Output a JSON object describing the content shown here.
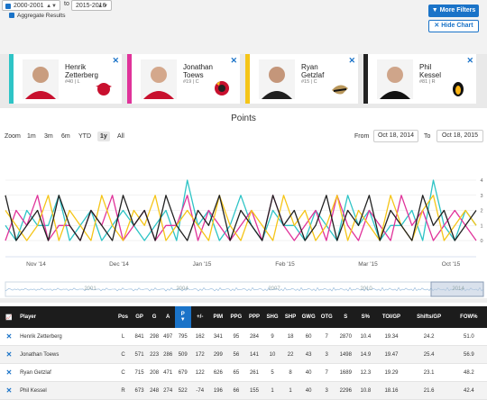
{
  "filters": {
    "season_from": "2000-2001",
    "to_label": "to",
    "season_to": "2015-2016",
    "aggregate_label": "Aggregate Results",
    "more_filters_label": "More Filters",
    "hide_chart_label": "Hide Chart"
  },
  "icons": {
    "filter": "filter-icon",
    "close": "close-icon",
    "chart": "chart-icon",
    "sort": "sort-down-icon"
  },
  "colors": {
    "teal": "#2ec4c6",
    "magenta": "#e0339a",
    "yellow": "#f5c518",
    "black": "#222222",
    "accent": "#1a73c8"
  },
  "players": [
    {
      "first": "Henrik",
      "last": "Zetterberg",
      "meta": "#40 | L",
      "color": "#2ec4c6",
      "team_logo": "red-wings-logo"
    },
    {
      "first": "Jonathan",
      "last": "Toews",
      "meta": "#19 | C",
      "color": "#e0339a",
      "team_logo": "blackhawks-logo"
    },
    {
      "first": "Ryan",
      "last": "Getzlaf",
      "meta": "#15 | C",
      "color": "#f5c518",
      "team_logo": "ducks-logo"
    },
    {
      "first": "Phil",
      "last": "Kessel",
      "meta": "#81 | R",
      "color": "#222222",
      "team_logo": "penguins-logo"
    }
  ],
  "chart": {
    "title": "Points",
    "zoom_label": "Zoom",
    "zoom_buttons": [
      "1m",
      "3m",
      "6m",
      "YTD",
      "1y",
      "All"
    ],
    "zoom_active": "1y",
    "from_label": "From",
    "from_date": "Oct 18, 2014",
    "to_label": "To",
    "to_date": "Oct 18, 2015",
    "navigator_labels": [
      "2001",
      "2004",
      "2007",
      "2010",
      "2014"
    ]
  },
  "chart_data": {
    "type": "line",
    "title": "Points",
    "x_ticks": [
      "Nov '14",
      "Dec '14",
      "Jan '15",
      "Feb '15",
      "Mar '15",
      "Oct '15"
    ],
    "ylim": [
      0,
      4
    ],
    "y_ticks": [
      0,
      1,
      2,
      3,
      4
    ],
    "grid": true,
    "legend": "none",
    "series": [
      {
        "values": [
          1,
          0,
          2,
          1,
          1,
          3,
          0,
          1,
          2,
          0,
          1,
          2,
          1,
          0,
          1,
          2,
          0,
          4,
          1,
          2,
          0,
          1,
          3,
          1,
          0,
          2,
          1,
          1,
          0,
          2,
          1,
          0,
          3,
          1,
          2,
          0,
          1,
          1,
          2,
          0,
          4,
          1,
          0,
          2,
          1
        ]
      },
      {
        "values": [
          0,
          2,
          1,
          3,
          0,
          1,
          1,
          0,
          2,
          1,
          3,
          0,
          1,
          2,
          0,
          1,
          1,
          3,
          0,
          2,
          1,
          0,
          1,
          2,
          0,
          3,
          1,
          0,
          1,
          2,
          0,
          3,
          1,
          0,
          2,
          1,
          0,
          3,
          1,
          2,
          0,
          1,
          2,
          1,
          0
        ]
      },
      {
        "values": [
          2,
          1,
          0,
          1,
          3,
          0,
          2,
          1,
          0,
          3,
          1,
          0,
          2,
          1,
          3,
          0,
          1,
          2,
          1,
          0,
          3,
          1,
          0,
          2,
          1,
          0,
          3,
          1,
          2,
          0,
          1,
          3,
          0,
          2,
          1,
          0,
          3,
          1,
          0,
          2,
          3,
          0,
          1,
          2,
          1
        ]
      },
      {
        "values": [
          3,
          0,
          1,
          2,
          0,
          3,
          1,
          0,
          2,
          1,
          0,
          3,
          1,
          2,
          0,
          3,
          1,
          0,
          2,
          1,
          3,
          0,
          2,
          1,
          0,
          3,
          1,
          2,
          0,
          1,
          3,
          0,
          2,
          1,
          3,
          0,
          2,
          1,
          0,
          3,
          1,
          2,
          0,
          1,
          2
        ]
      }
    ]
  },
  "table": {
    "columns": [
      "",
      "Player",
      "Pos",
      "GP",
      "G",
      "A",
      "P",
      "+/-",
      "PIM",
      "PPG",
      "PPP",
      "SHG",
      "SHP",
      "GWG",
      "OTG",
      "S",
      "S%",
      "TOI/GP",
      "Shifts/GP",
      "FOW%"
    ],
    "sorted_column": "P",
    "rows": [
      [
        "Henrik Zetterberg",
        "L",
        "841",
        "298",
        "497",
        "795",
        "162",
        "341",
        "95",
        "284",
        "9",
        "18",
        "60",
        "7",
        "2870",
        "10.4",
        "19.34",
        "24.2",
        "51.0"
      ],
      [
        "Jonathan Toews",
        "C",
        "571",
        "223",
        "286",
        "509",
        "172",
        "299",
        "56",
        "141",
        "10",
        "22",
        "43",
        "3",
        "1498",
        "14.9",
        "19.47",
        "25.4",
        "56.9"
      ],
      [
        "Ryan Getzlaf",
        "C",
        "715",
        "208",
        "471",
        "679",
        "122",
        "626",
        "65",
        "261",
        "5",
        "8",
        "40",
        "7",
        "1689",
        "12.3",
        "19.29",
        "23.1",
        "48.2"
      ],
      [
        "Phil Kessel",
        "R",
        "673",
        "248",
        "274",
        "522",
        "-74",
        "196",
        "66",
        "155",
        "1",
        "1",
        "40",
        "3",
        "2296",
        "10.8",
        "18.16",
        "21.6",
        "42.4"
      ]
    ]
  }
}
